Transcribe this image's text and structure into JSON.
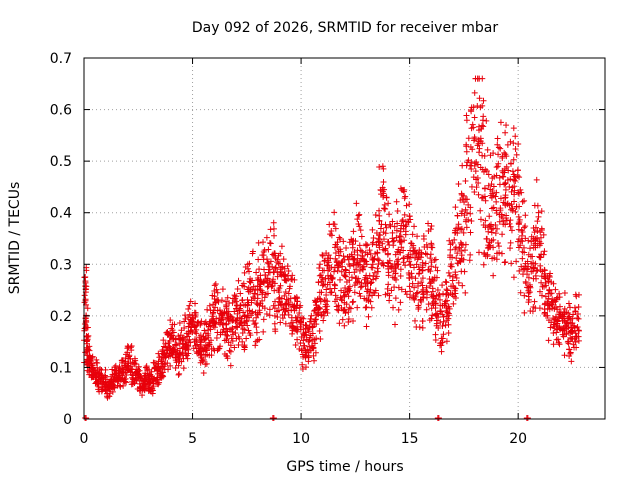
{
  "chart_data": {
    "type": "scatter",
    "title": "Day 092 of 2026, SRMTID for receiver mbar",
    "xlabel": "GPS time / hours",
    "ylabel": "SRMTID / TECUs",
    "xlim": [
      0,
      24
    ],
    "ylim": [
      0,
      0.7
    ],
    "xticks": [
      0,
      5,
      10,
      15,
      20
    ],
    "yticks": [
      0,
      0.1,
      0.2,
      0.3,
      0.4,
      0.5,
      0.6,
      0.7
    ],
    "grid": true,
    "marker": "+",
    "colors": {
      "series": "#e8000b",
      "grid": "#a0a0a0",
      "axis": "#000000"
    },
    "series": [
      {
        "name": "SRMTID",
        "x": [
          0.0,
          0.1,
          0.2,
          0.3,
          0.5,
          0.7,
          0.9,
          1.1,
          1.3,
          1.5,
          1.7,
          1.9,
          2.1,
          2.3,
          2.5,
          2.7,
          2.9,
          3.1,
          3.3,
          3.5,
          3.7,
          3.9,
          4.1,
          4.3,
          4.5,
          4.7,
          4.9,
          5.1,
          5.3,
          5.5,
          5.7,
          5.9,
          6.1,
          6.3,
          6.5,
          6.7,
          6.9,
          7.1,
          7.3,
          7.5,
          7.7,
          7.9,
          8.1,
          8.3,
          8.5,
          8.7,
          8.9,
          9.1,
          9.3,
          9.5,
          9.7,
          9.9,
          10.1,
          10.3,
          10.5,
          10.7,
          10.9,
          11.1,
          11.3,
          11.5,
          11.7,
          11.9,
          12.1,
          12.3,
          12.5,
          12.7,
          12.9,
          13.1,
          13.3,
          13.5,
          13.7,
          13.9,
          14.1,
          14.3,
          14.5,
          14.7,
          14.9,
          15.1,
          15.3,
          15.5,
          15.7,
          15.9,
          16.1,
          16.3,
          16.5,
          16.7,
          16.9,
          17.1,
          17.3,
          17.5,
          17.7,
          17.9,
          18.1,
          18.3,
          18.5,
          18.7,
          18.9,
          19.1,
          19.3,
          19.5,
          19.7,
          19.9,
          20.1,
          20.3,
          20.5,
          20.7,
          20.9,
          21.1,
          21.3,
          21.5,
          21.7,
          21.9,
          22.1,
          22.3,
          22.5,
          22.7,
          0.0,
          0.05,
          8.7,
          16.3,
          20.4
        ],
        "y": [
          0.26,
          0.16,
          0.12,
          0.1,
          0.09,
          0.08,
          0.07,
          0.06,
          0.07,
          0.08,
          0.09,
          0.1,
          0.11,
          0.09,
          0.08,
          0.07,
          0.08,
          0.07,
          0.09,
          0.1,
          0.12,
          0.14,
          0.15,
          0.13,
          0.14,
          0.16,
          0.18,
          0.17,
          0.15,
          0.14,
          0.16,
          0.18,
          0.2,
          0.19,
          0.18,
          0.17,
          0.19,
          0.21,
          0.2,
          0.22,
          0.24,
          0.23,
          0.25,
          0.27,
          0.28,
          0.29,
          0.26,
          0.25,
          0.24,
          0.22,
          0.2,
          0.18,
          0.15,
          0.14,
          0.16,
          0.2,
          0.24,
          0.27,
          0.29,
          0.3,
          0.28,
          0.26,
          0.25,
          0.28,
          0.31,
          0.33,
          0.3,
          0.26,
          0.28,
          0.32,
          0.4,
          0.36,
          0.3,
          0.28,
          0.32,
          0.36,
          0.34,
          0.3,
          0.28,
          0.26,
          0.28,
          0.3,
          0.25,
          0.22,
          0.2,
          0.22,
          0.26,
          0.3,
          0.33,
          0.38,
          0.45,
          0.52,
          0.6,
          0.5,
          0.42,
          0.38,
          0.4,
          0.44,
          0.42,
          0.47,
          0.45,
          0.42,
          0.38,
          0.32,
          0.28,
          0.3,
          0.34,
          0.31,
          0.26,
          0.22,
          0.2,
          0.19,
          0.18,
          0.17,
          0.16,
          0.18,
          0.23,
          0.0,
          0.0,
          0.0,
          0.0
        ]
      }
    ]
  }
}
